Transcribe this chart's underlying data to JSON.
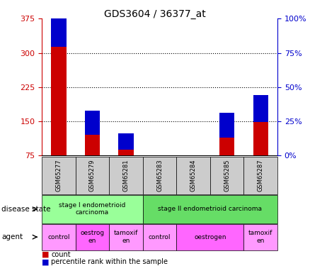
{
  "title": "GDS3604 / 36377_at",
  "samples": [
    "GSM65277",
    "GSM65279",
    "GSM65281",
    "GSM65283",
    "GSM65284",
    "GSM65285",
    "GSM65287"
  ],
  "count_values": [
    313,
    120,
    88,
    75,
    75,
    115,
    148
  ],
  "percentile_values": [
    24,
    18,
    12,
    0,
    0,
    18,
    20
  ],
  "ylim_left": [
    75,
    375
  ],
  "ylim_right": [
    0,
    100
  ],
  "yticks_left": [
    75,
    150,
    225,
    300,
    375
  ],
  "yticks_right": [
    0,
    25,
    50,
    75,
    100
  ],
  "bar_width": 0.45,
  "count_color": "#cc0000",
  "percentile_color": "#0000cc",
  "disease_state_groups": [
    {
      "label": "stage I endometrioid\ncarcinoma",
      "start": 0,
      "end": 3,
      "color": "#99ff99"
    },
    {
      "label": "stage II endometrioid carcinoma",
      "start": 3,
      "end": 7,
      "color": "#66dd66"
    }
  ],
  "agent_groups": [
    {
      "label": "control",
      "start": 0,
      "end": 1,
      "color": "#ff99ff"
    },
    {
      "label": "oestrog\nen",
      "start": 1,
      "end": 2,
      "color": "#ff66ff"
    },
    {
      "label": "tamoxif\nen",
      "start": 2,
      "end": 3,
      "color": "#ff99ff"
    },
    {
      "label": "control",
      "start": 3,
      "end": 4,
      "color": "#ff99ff"
    },
    {
      "label": "oestrogen",
      "start": 4,
      "end": 6,
      "color": "#ff66ff"
    },
    {
      "label": "tamoxif\nen",
      "start": 6,
      "end": 7,
      "color": "#ff99ff"
    }
  ],
  "legend_count": "count",
  "legend_percentile": "percentile rank within the sample",
  "bg_color": "#ffffff",
  "tick_label_color_left": "#cc0000",
  "tick_label_color_right": "#0000cc",
  "sample_bg_color": "#cccccc",
  "figsize": [
    4.38,
    3.75
  ],
  "dpi": 100
}
